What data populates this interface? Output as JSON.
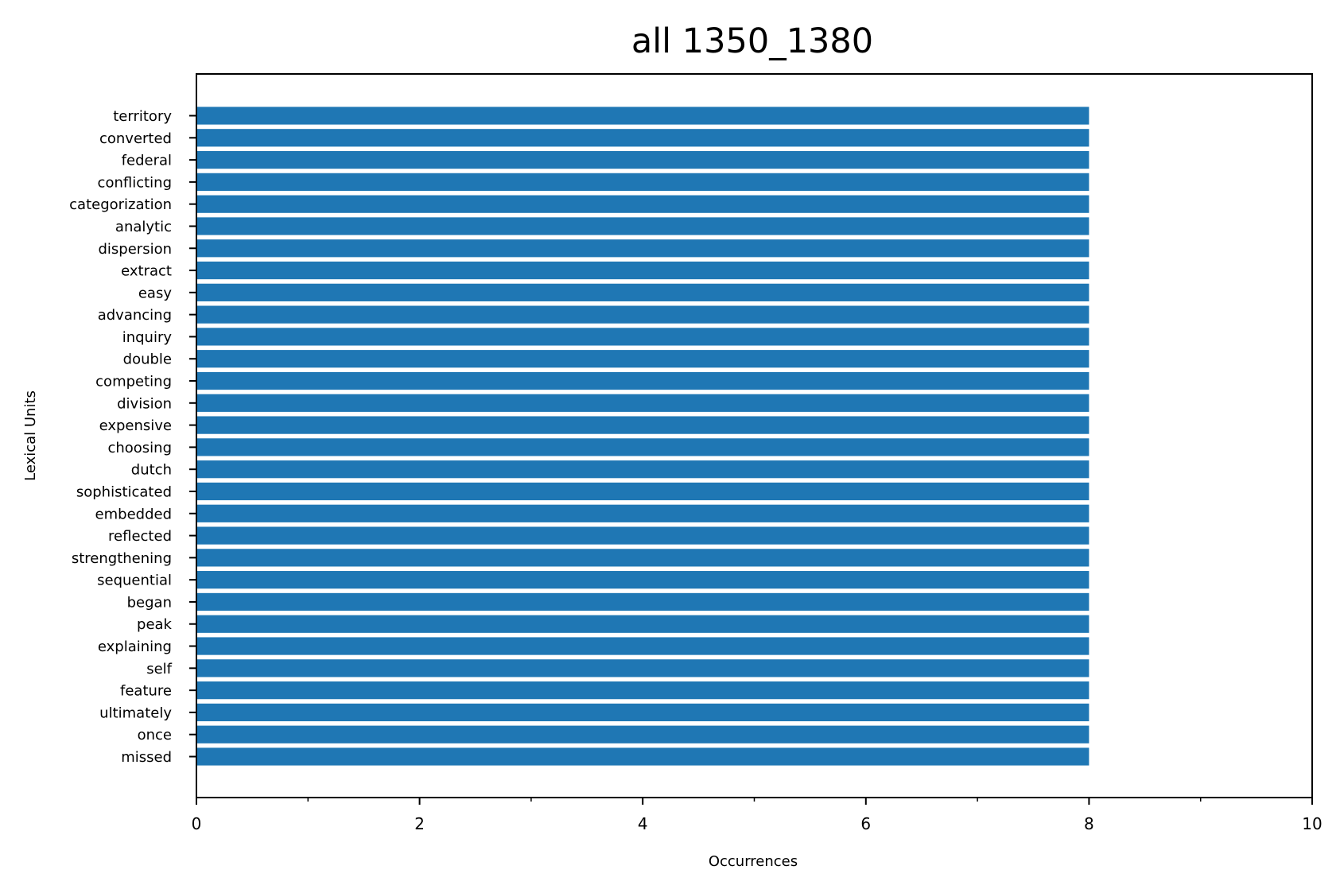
{
  "chart_data": {
    "type": "bar",
    "orientation": "horizontal",
    "title": "all 1350_1380",
    "xlabel": "Occurrences",
    "ylabel": "Lexical Units",
    "xlim": [
      0,
      10
    ],
    "x_ticks": [
      0,
      2,
      4,
      6,
      8,
      10
    ],
    "x_minor_ticks": [
      1,
      3,
      5,
      7,
      9
    ],
    "grid": false,
    "legend": "none",
    "colors": {
      "bar": "#1f77b4",
      "axis": "#000000",
      "background": "#ffffff"
    },
    "categories": [
      "territory",
      "converted",
      "federal",
      "conflicting",
      "categorization",
      "analytic",
      "dispersion",
      "extract",
      "easy",
      "advancing",
      "inquiry",
      "double",
      "competing",
      "division",
      "expensive",
      "choosing",
      "dutch",
      "sophisticated",
      "embedded",
      "reflected",
      "strengthening",
      "sequential",
      "began",
      "peak",
      "explaining",
      "self",
      "feature",
      "ultimately",
      "once",
      "missed"
    ],
    "values": [
      8,
      8,
      8,
      8,
      8,
      8,
      8,
      8,
      8,
      8,
      8,
      8,
      8,
      8,
      8,
      8,
      8,
      8,
      8,
      8,
      8,
      8,
      8,
      8,
      8,
      8,
      8,
      8,
      8,
      8
    ]
  }
}
